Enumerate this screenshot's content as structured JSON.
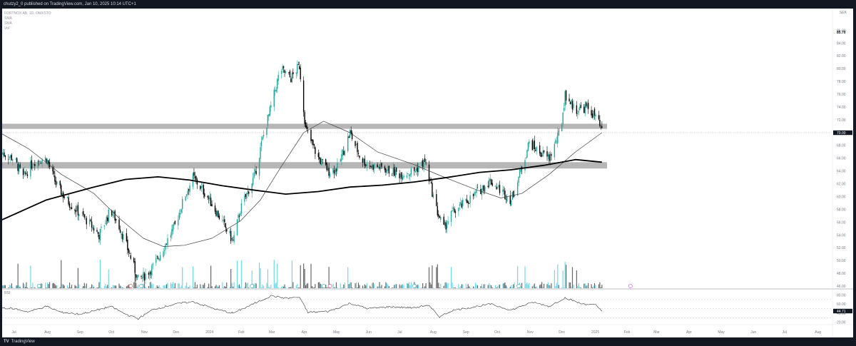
{
  "publish_bar": "chutzy2_0 published on TradingView.com, Jan 10, 2025 10:14 UTC+1",
  "legend": {
    "symbol": "FORTNOX AB, 1D, OMXSTO",
    "ind1": "SMA",
    "ind2": "SMA",
    "ind3": "Vol"
  },
  "currency": "SEK",
  "footer": {
    "logo": "TV",
    "brand": "TradingView"
  },
  "colors": {
    "up": "#26a69a",
    "down": "#000000",
    "vol_up": "#4dd0e1",
    "vol_down": "#424242",
    "zone": "#9e9e9e",
    "sma_fast": "#424242",
    "sma_slow": "#000000",
    "background": "#ffffff",
    "frame": "#131722"
  },
  "icons": [
    "tradingview-logo-icon",
    "event-marker-icon"
  ],
  "chart_data": [
    {
      "type": "candlestick",
      "title": "FORTNOX AB, 1D, OMXSTO",
      "currency": "SEK",
      "y_ticks": [
        "86.00",
        "84.00",
        "82.00",
        "80.00",
        "78.00",
        "76.00",
        "74.00",
        "72.00",
        "70.00",
        "68.00",
        "66.00",
        "64.00",
        "62.00",
        "60.00",
        "58.00",
        "56.00",
        "54.00",
        "52.00",
        "50.00",
        "48.00",
        "46.00"
      ],
      "ylim": [
        45.8,
        87.4
      ],
      "x_ticks": [
        "Jul",
        "Aug",
        "Sep",
        "Oct",
        "Nov",
        "Dec",
        "2024",
        "Feb",
        "Mar",
        "Apr",
        "May",
        "Jun",
        "Jul",
        "Aug",
        "Sep",
        "Oct",
        "Nov",
        "Dec",
        "2025",
        "Feb",
        "Mar",
        "Apr",
        "May",
        "Jun",
        "Jul",
        "Aug"
      ],
      "x_tick_dates": [
        "2023-07-01",
        "2023-08-01",
        "2023-09-01",
        "2023-10-01",
        "2023-11-01",
        "2023-12-01",
        "2024-01-01",
        "2024-02-01",
        "2024-03-01",
        "2024-04-01",
        "2024-05-01",
        "2024-06-01",
        "2024-07-01",
        "2024-08-01",
        "2024-09-01",
        "2024-10-01",
        "2024-11-01",
        "2024-12-01",
        "2025-01-01",
        "2025-02-01",
        "2025-03-01",
        "2025-04-01",
        "2025-05-01",
        "2025-06-01",
        "2025-07-01",
        "2025-08-01"
      ],
      "date_range": [
        "2023-06-20",
        "2025-08-15"
      ],
      "price_path": [
        [
          "2023-06-20",
          66.8
        ],
        [
          "2023-07-01",
          66.0
        ],
        [
          "2023-07-10",
          63.0
        ],
        [
          "2023-07-20",
          65.5
        ],
        [
          "2023-08-01",
          66.0
        ],
        [
          "2023-08-10",
          62.0
        ],
        [
          "2023-08-20",
          59.5
        ],
        [
          "2023-09-01",
          57.5
        ],
        [
          "2023-09-10",
          56.0
        ],
        [
          "2023-09-20",
          54.0
        ],
        [
          "2023-10-01",
          58.0
        ],
        [
          "2023-10-10",
          55.0
        ],
        [
          "2023-10-20",
          50.5
        ],
        [
          "2023-10-27",
          47.0
        ],
        [
          "2023-11-01",
          47.5
        ],
        [
          "2023-11-10",
          49.0
        ],
        [
          "2023-11-20",
          52.0
        ],
        [
          "2023-12-01",
          55.5
        ],
        [
          "2023-12-10",
          60.0
        ],
        [
          "2023-12-18",
          63.0
        ],
        [
          "2024-01-01",
          60.0
        ],
        [
          "2024-01-15",
          56.0
        ],
        [
          "2024-01-25",
          53.0
        ],
        [
          "2024-02-01",
          58.0
        ],
        [
          "2024-02-15",
          63.5
        ],
        [
          "2024-02-22",
          69.0
        ],
        [
          "2024-03-01",
          74.0
        ],
        [
          "2024-03-10",
          80.0
        ],
        [
          "2024-03-20",
          78.5
        ],
        [
          "2024-03-28",
          80.5
        ],
        [
          "2024-04-03",
          70.5
        ],
        [
          "2024-04-15",
          66.0
        ],
        [
          "2024-04-25",
          64.0
        ],
        [
          "2024-05-03",
          64.5
        ],
        [
          "2024-05-15",
          70.0
        ],
        [
          "2024-05-25",
          66.0
        ],
        [
          "2024-06-01",
          65.0
        ],
        [
          "2024-06-15",
          64.5
        ],
        [
          "2024-07-01",
          63.5
        ],
        [
          "2024-07-15",
          64.0
        ],
        [
          "2024-07-25",
          65.5
        ],
        [
          "2024-08-05",
          58.0
        ],
        [
          "2024-08-12",
          55.0
        ],
        [
          "2024-08-20",
          57.5
        ],
        [
          "2024-09-01",
          59.0
        ],
        [
          "2024-09-15",
          61.0
        ],
        [
          "2024-09-25",
          62.5
        ],
        [
          "2024-10-05",
          61.0
        ],
        [
          "2024-10-15",
          59.5
        ],
        [
          "2024-10-22",
          63.0
        ],
        [
          "2024-11-01",
          68.5
        ],
        [
          "2024-11-10",
          67.0
        ],
        [
          "2024-11-20",
          66.0
        ],
        [
          "2024-12-01",
          70.5
        ],
        [
          "2024-12-05",
          76.0
        ],
        [
          "2024-12-15",
          73.5
        ],
        [
          "2024-12-25",
          74.0
        ],
        [
          "2025-01-03",
          72.5
        ],
        [
          "2025-01-09",
          70.1
        ]
      ],
      "sma_slow_path": [
        [
          "2023-06-20",
          56.4
        ],
        [
          "2023-08-01",
          59.5
        ],
        [
          "2023-09-15",
          61.5
        ],
        [
          "2023-10-15",
          62.7
        ],
        [
          "2023-11-15",
          63.1
        ],
        [
          "2023-12-15",
          62.6
        ],
        [
          "2024-01-15",
          61.7
        ],
        [
          "2024-02-15",
          61.0
        ],
        [
          "2024-03-15",
          60.4
        ],
        [
          "2024-04-15",
          60.8
        ],
        [
          "2024-05-15",
          61.5
        ],
        [
          "2024-06-15",
          61.8
        ],
        [
          "2024-07-15",
          62.3
        ],
        [
          "2024-08-15",
          63.0
        ],
        [
          "2024-09-15",
          63.8
        ],
        [
          "2024-10-15",
          64.2
        ],
        [
          "2024-11-15",
          64.9
        ],
        [
          "2024-12-15",
          65.8
        ],
        [
          "2025-01-09",
          65.4
        ]
      ],
      "sma_fast_path": [
        [
          "2023-06-20",
          69.8
        ],
        [
          "2023-07-15",
          67.5
        ],
        [
          "2023-08-15",
          63.5
        ],
        [
          "2023-09-15",
          60.5
        ],
        [
          "2023-10-10",
          56.5
        ],
        [
          "2023-11-01",
          53.5
        ],
        [
          "2023-11-20",
          52.2
        ],
        [
          "2023-12-10",
          52.4
        ],
        [
          "2024-01-05",
          53.5
        ],
        [
          "2024-02-01",
          56.2
        ],
        [
          "2024-02-20",
          59.5
        ],
        [
          "2024-03-10",
          64.5
        ],
        [
          "2024-04-01",
          70.0
        ],
        [
          "2024-04-20",
          71.8
        ],
        [
          "2024-05-15",
          70.0
        ],
        [
          "2024-06-10",
          67.0
        ],
        [
          "2024-07-15",
          65.0
        ],
        [
          "2024-08-10",
          63.2
        ],
        [
          "2024-09-10",
          61.2
        ],
        [
          "2024-10-05",
          59.8
        ],
        [
          "2024-10-25",
          60.5
        ],
        [
          "2024-11-20",
          63.5
        ],
        [
          "2024-12-15",
          67.0
        ],
        [
          "2025-01-09",
          70.0
        ]
      ],
      "resistance_zone": [
        70.6,
        71.4
      ],
      "support_zone": [
        64.4,
        65.4
      ],
      "last_price": "70.00",
      "price_label_high": "85.70",
      "annotations": [
        "70.00",
        "85.70"
      ]
    },
    {
      "type": "line",
      "title": "RSI",
      "y_ticks": [
        "80.00",
        "60.00",
        "40.00",
        "20.00"
      ],
      "ylim": [
        15,
        87
      ],
      "last_value": "44.71",
      "rsi_path": [
        [
          "2023-06-20",
          52
        ],
        [
          "2023-07-01",
          50
        ],
        [
          "2023-07-15",
          43
        ],
        [
          "2023-08-01",
          55
        ],
        [
          "2023-08-15",
          42
        ],
        [
          "2023-09-01",
          38
        ],
        [
          "2023-09-15",
          45
        ],
        [
          "2023-10-01",
          55
        ],
        [
          "2023-10-15",
          38
        ],
        [
          "2023-10-27",
          28
        ],
        [
          "2023-11-10",
          48
        ],
        [
          "2023-12-01",
          60
        ],
        [
          "2023-12-18",
          65
        ],
        [
          "2024-01-10",
          48
        ],
        [
          "2024-01-25",
          40
        ],
        [
          "2024-02-15",
          62
        ],
        [
          "2024-03-01",
          78
        ],
        [
          "2024-03-15",
          73
        ],
        [
          "2024-03-28",
          75
        ],
        [
          "2024-04-05",
          42
        ],
        [
          "2024-04-25",
          44
        ],
        [
          "2024-05-15",
          62
        ],
        [
          "2024-06-01",
          50
        ],
        [
          "2024-06-20",
          54
        ],
        [
          "2024-07-15",
          52
        ],
        [
          "2024-07-28",
          58
        ],
        [
          "2024-08-08",
          32
        ],
        [
          "2024-08-20",
          46
        ],
        [
          "2024-09-10",
          54
        ],
        [
          "2024-09-25",
          60
        ],
        [
          "2024-10-15",
          47
        ],
        [
          "2024-10-25",
          56
        ],
        [
          "2024-11-05",
          64
        ],
        [
          "2024-11-20",
          55
        ],
        [
          "2024-12-05",
          74
        ],
        [
          "2024-12-20",
          61
        ],
        [
          "2025-01-03",
          58
        ],
        [
          "2025-01-09",
          44.71
        ]
      ]
    }
  ]
}
